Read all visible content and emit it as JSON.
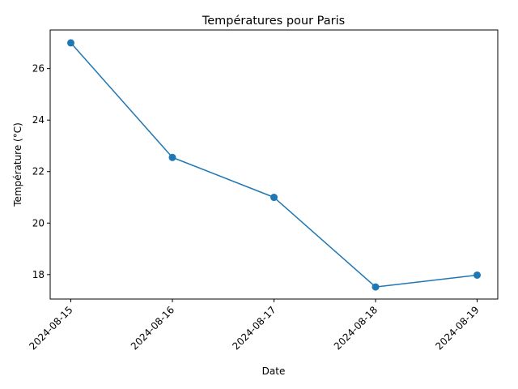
{
  "chart_data": {
    "type": "line",
    "title": "Températures pour Paris",
    "xlabel": "Date",
    "ylabel": "Température (°C)",
    "x": [
      "2024-08-15",
      "2024-08-16",
      "2024-08-17",
      "2024-08-18",
      "2024-08-19"
    ],
    "series": [
      {
        "values": [
          27.0,
          22.55,
          21.0,
          17.52,
          17.98
        ]
      }
    ],
    "ylim": [
      17.05,
      27.5
    ],
    "yticks": [
      18,
      20,
      22,
      24,
      26
    ],
    "markers": true,
    "grid": false,
    "line_color": "#1f77b4"
  }
}
